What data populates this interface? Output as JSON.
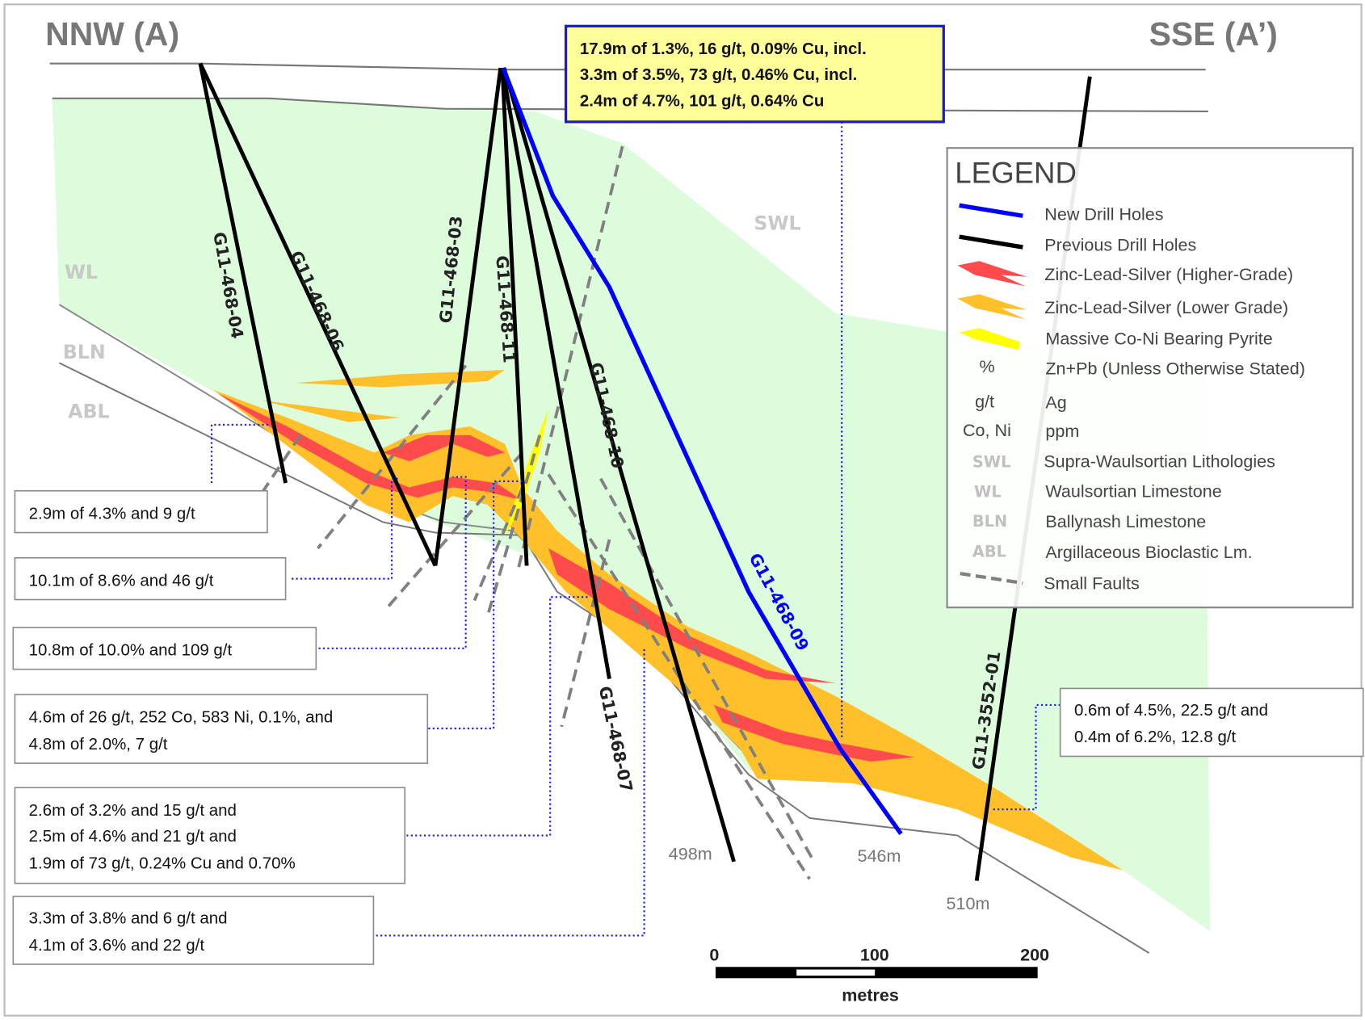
{
  "section": {
    "left_label": "NNW (A)",
    "right_label": "SSE (A’)"
  },
  "highlight_callout": [
    "17.9m of 1.3%, 16 g/t, 0.09% Cu, incl.",
    "3.3m of 3.5%, 73 g/t, 0.46% Cu, incl.",
    "2.4m of 4.7%, 101 g/t, 0.64% Cu"
  ],
  "callouts": [
    [
      "2.9m of 4.3% and 9 g/t"
    ],
    [
      "10.1m of 8.6% and 46 g/t"
    ],
    [
      "10.8m of 10.0% and 109 g/t"
    ],
    [
      "4.6m of 26 g/t, 252 Co, 583 Ni, 0.1%, and",
      "4.8m of 2.0%, 7 g/t"
    ],
    [
      "2.6m of 3.2% and 15 g/t and",
      "2.5m of 4.6% and 21 g/t and",
      "1.9m of 73 g/t, 0.24% Cu and 0.70%"
    ],
    [
      "3.3m of 3.8% and 6 g/t and",
      "4.1m of 3.6% and 22 g/t"
    ],
    [
      "0.6m of 4.5%, 22.5 g/t and",
      "0.4m of 6.2%, 12.8 g/t"
    ]
  ],
  "drill_holes": {
    "h04": "G11-468-04",
    "h06": "G11-468-06",
    "h03": "G11-468-03",
    "h11": "G11-468-11",
    "h10": "G11-468-10",
    "h07": "G11-468-07",
    "h09": "G11-468-09",
    "h3552": "G11-3552-01"
  },
  "depths": {
    "d498": "498m",
    "d546": "546m",
    "d510": "510m"
  },
  "lithology_labels": {
    "wl": "WL",
    "bln": "BLN",
    "abl": "ABL",
    "swl": "SWL"
  },
  "legend": {
    "title": "LEGEND",
    "items": [
      {
        "symbol": "",
        "label": "New Drill Holes",
        "color": "#0000ff"
      },
      {
        "symbol": "",
        "label": "Previous Drill Holes",
        "color": "#000000"
      },
      {
        "symbol": "",
        "label": "Zinc-Lead-Silver (Higher-Grade)",
        "color": "#ff4b4b"
      },
      {
        "symbol": "",
        "label": "Zinc-Lead-Silver (Lower Grade)",
        "color": "#ffc02a"
      },
      {
        "symbol": "",
        "label": "Massive Co-Ni Bearing Pyrite",
        "color": "#ffff00"
      },
      {
        "symbol": "%",
        "label": "Zn+Pb (Unless Otherwise Stated)"
      },
      {
        "symbol": "g/t",
        "label": "Ag"
      },
      {
        "symbol": "Co, Ni",
        "label": "ppm"
      },
      {
        "symbol": "SWL",
        "label": "Supra-Waulsortian Lithologies"
      },
      {
        "symbol": "WL",
        "label": "Waulsortian Limestone"
      },
      {
        "symbol": "BLN",
        "label": "Ballynash Limestone"
      },
      {
        "symbol": "ABL",
        "label": "Argillaceous Bioclastic Lm."
      },
      {
        "symbol": "",
        "label": "Small Faults",
        "color": "#808080"
      }
    ]
  },
  "scale_bar": {
    "ticks": [
      "0",
      "100",
      "200"
    ],
    "unit": "metres"
  },
  "colors": {
    "wl_fill": "#dcfcdc",
    "new_hole": "#0000ff",
    "callout_fill": "#ffff99"
  }
}
